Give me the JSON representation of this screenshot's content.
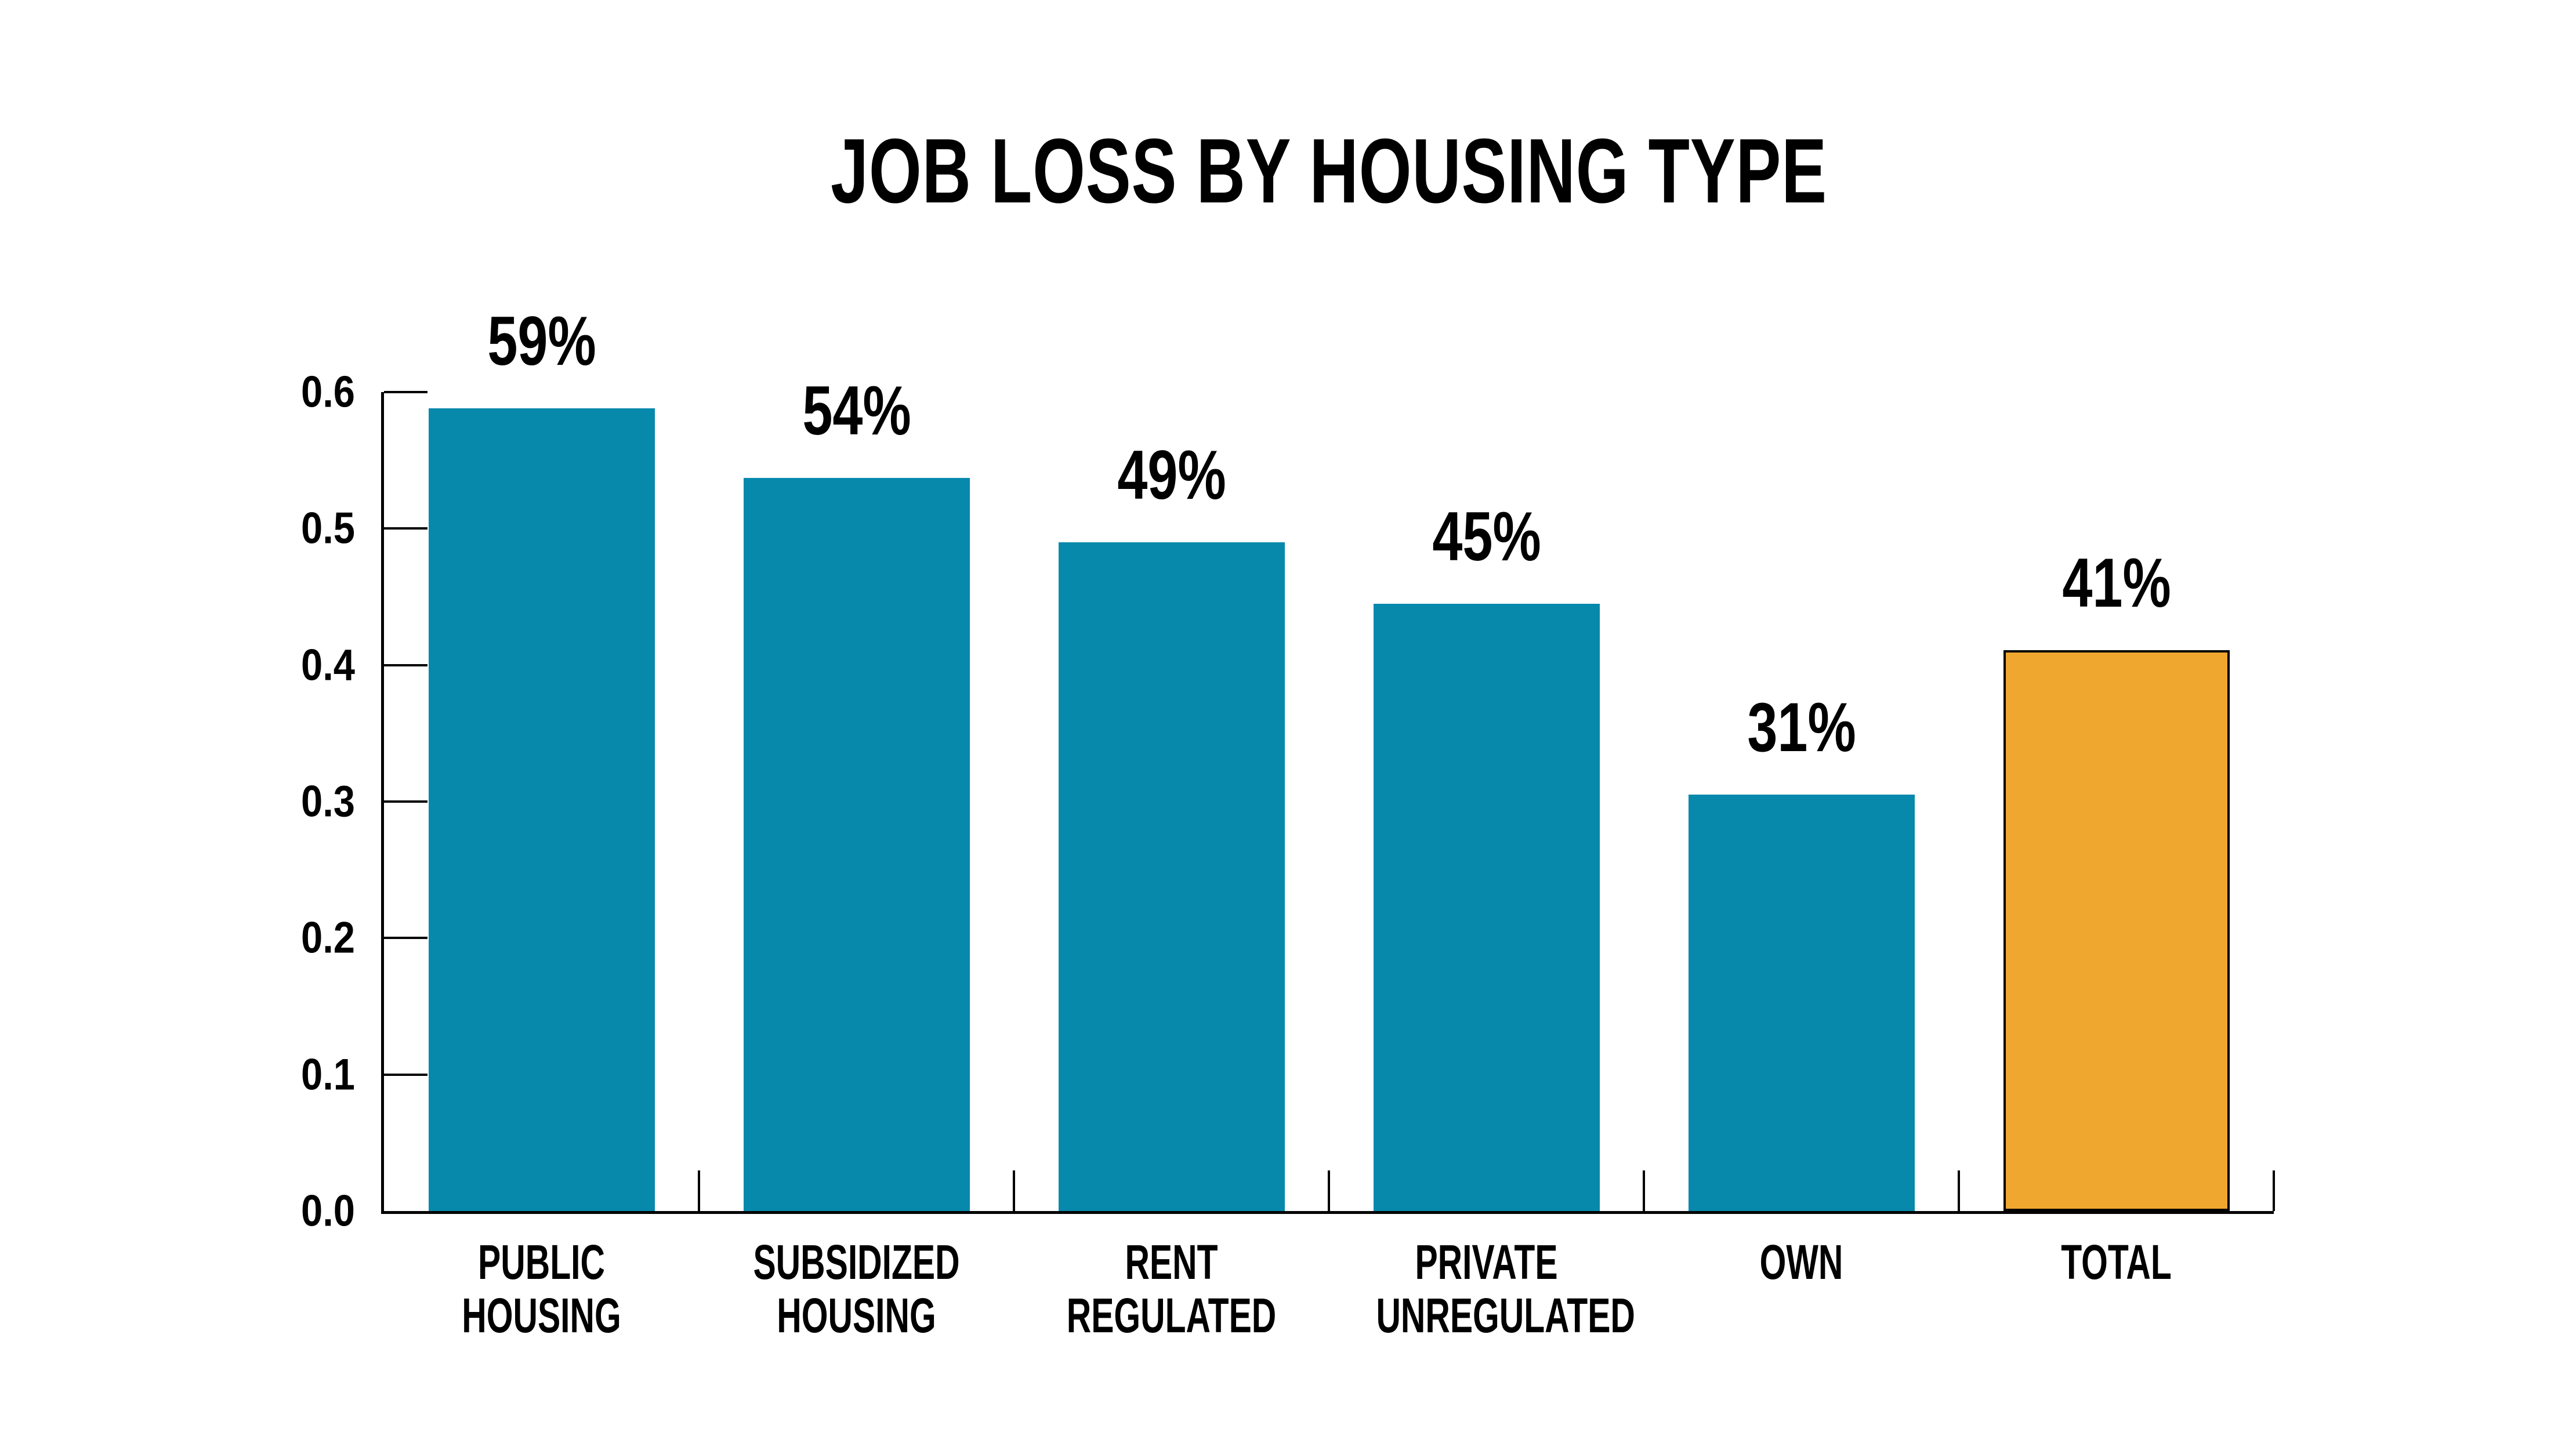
{
  "title": "JOB LOSS BY HOUSING TYPE",
  "colors": {
    "bar": "#0789AC",
    "highlight_bar": "#F0A72F",
    "highlight_border": "#000000",
    "axis": "#000000",
    "text": "#000000",
    "background": "#FFFFFF"
  },
  "chart_data": {
    "type": "bar",
    "title": "JOB LOSS BY HOUSING TYPE",
    "categories": [
      [
        "PUBLIC",
        "HOUSING"
      ],
      [
        "SUBSIDIZED",
        "HOUSING"
      ],
      [
        "RENT",
        "REGULATED"
      ],
      [
        "PRIVATE",
        "UNREGULATED"
      ],
      [
        "OWN"
      ],
      [
        "TOTAL"
      ]
    ],
    "values": [
      0.588,
      0.537,
      0.49,
      0.445,
      0.305,
      0.411
    ],
    "value_labels": [
      "59%",
      "54%",
      "49%",
      "45%",
      "31%",
      "41%"
    ],
    "highlight_index": 5,
    "xlabel": "",
    "ylabel": "",
    "ylim": [
      0,
      0.6
    ],
    "yticks": [
      "0.0",
      "0.1",
      "0.2",
      "0.3",
      "0.4",
      "0.5",
      "0.6"
    ],
    "grid": false,
    "legend": null,
    "tick_direction": "in",
    "bar_color_note": "all bars teal except TOTAL which is orange with black outline"
  }
}
